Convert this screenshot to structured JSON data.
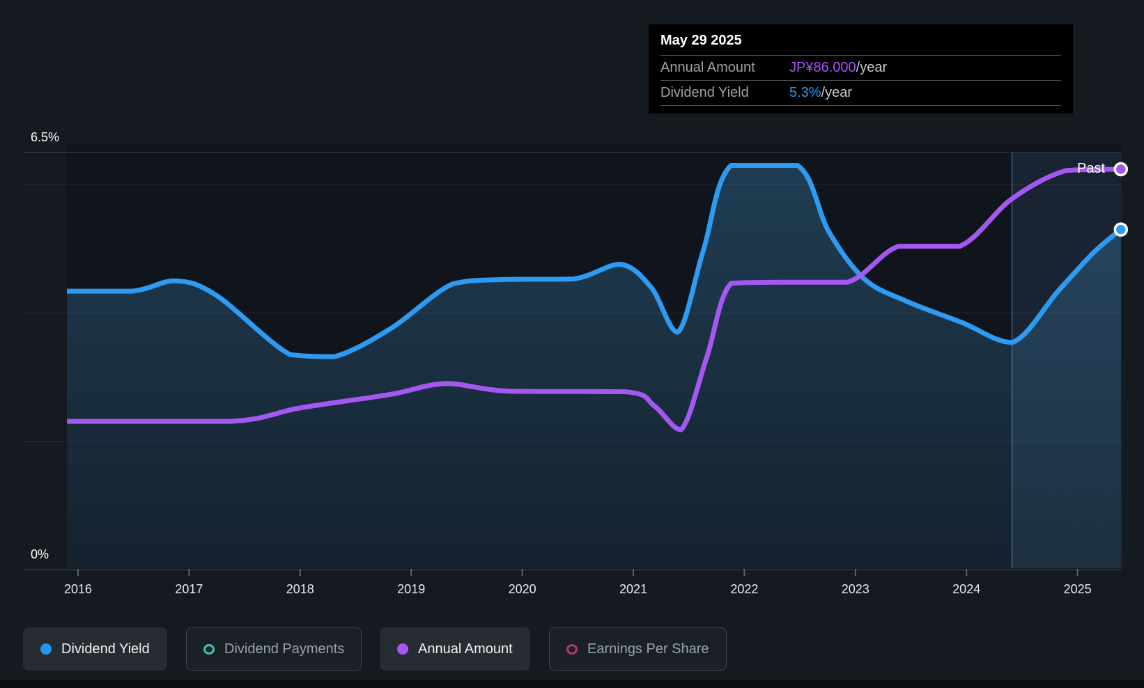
{
  "page": {
    "background": "#151a21",
    "plot_background": "#10141b",
    "bottom_strip_color": "#0b0e13"
  },
  "tooltip": {
    "date": "May 29 2025",
    "rows": [
      {
        "label": "Annual Amount",
        "value": "JP¥86.000",
        "suffix": "/year",
        "color": "#a751f5"
      },
      {
        "label": "Dividend Yield",
        "value": "5.3%",
        "suffix": "/year",
        "color": "#2d9bf0"
      }
    ]
  },
  "chart_data": {
    "type": "area",
    "title": "Dividend yield and annual dividend amount history",
    "x_axis": {
      "ticks": [
        2016,
        2017,
        2018,
        2019,
        2020,
        2021,
        2022,
        2023,
        2024,
        2025
      ],
      "range": [
        2015.9,
        2025.42
      ],
      "grid": false
    },
    "y_axis": {
      "range": [
        0,
        6.5
      ],
      "unit": "%",
      "labels": [
        {
          "text": "6.5%",
          "pct": 6.5
        },
        {
          "text": "0%",
          "pct": 0
        }
      ],
      "gridlines_pct": [
        6.5,
        6,
        4,
        2,
        0
      ]
    },
    "past_marker": {
      "label": "Past",
      "divider_year": 2024.41
    },
    "legend_position": "bottom",
    "series": [
      {
        "name": "Dividend Yield",
        "color": "#2e9bf3",
        "unit": "%",
        "visible": true,
        "end_value": "5.3%/year",
        "points": [
          {
            "year": 2015.9,
            "yield_pct": 4.34
          },
          {
            "year": 2016.49,
            "yield_pct": 4.34
          },
          {
            "year": 2016.87,
            "yield_pct": 4.5
          },
          {
            "year": 2017.24,
            "yield_pct": 4.28
          },
          {
            "year": 2017.91,
            "yield_pct": 3.35
          },
          {
            "year": 2018.31,
            "yield_pct": 3.32
          },
          {
            "year": 2018.81,
            "yield_pct": 3.75
          },
          {
            "year": 2019.37,
            "yield_pct": 4.45
          },
          {
            "year": 2019.81,
            "yield_pct": 4.52
          },
          {
            "year": 2020.46,
            "yield_pct": 4.53
          },
          {
            "year": 2020.88,
            "yield_pct": 4.76
          },
          {
            "year": 2021.16,
            "yield_pct": 4.4
          },
          {
            "year": 2021.4,
            "yield_pct": 3.7
          },
          {
            "year": 2021.63,
            "yield_pct": 4.97
          },
          {
            "year": 2021.88,
            "yield_pct": 6.3
          },
          {
            "year": 2022.48,
            "yield_pct": 6.3
          },
          {
            "year": 2022.76,
            "yield_pct": 5.27
          },
          {
            "year": 2023.08,
            "yield_pct": 4.53
          },
          {
            "year": 2023.45,
            "yield_pct": 4.19
          },
          {
            "year": 2023.96,
            "yield_pct": 3.85
          },
          {
            "year": 2024.41,
            "yield_pct": 3.54
          },
          {
            "year": 2024.83,
            "yield_pct": 4.35
          },
          {
            "year": 2025.15,
            "yield_pct": 4.95
          },
          {
            "year": 2025.39,
            "yield_pct": 5.3
          }
        ]
      },
      {
        "name": "Annual Amount",
        "color": "#a458f2",
        "unit": "JP¥/year (plotted on the yield % axis)",
        "visible": true,
        "end_value": "JP¥86.000/year",
        "points": [
          {
            "year": 2015.9,
            "plotted_pct": 2.31,
            "amount_jpy_est": 32
          },
          {
            "year": 2017.37,
            "plotted_pct": 2.31,
            "amount_jpy_est": 32
          },
          {
            "year": 2018.0,
            "plotted_pct": 2.52,
            "amount_jpy_est": 35
          },
          {
            "year": 2018.81,
            "plotted_pct": 2.73,
            "amount_jpy_est": 38
          },
          {
            "year": 2019.31,
            "plotted_pct": 2.9,
            "amount_jpy_est": 40
          },
          {
            "year": 2019.88,
            "plotted_pct": 2.78,
            "amount_jpy_est": 38
          },
          {
            "year": 2020.94,
            "plotted_pct": 2.77,
            "amount_jpy_est": 38
          },
          {
            "year": 2021.19,
            "plotted_pct": 2.55,
            "amount_jpy_est": 35
          },
          {
            "year": 2021.43,
            "plotted_pct": 2.18,
            "amount_jpy_est": 30
          },
          {
            "year": 2021.66,
            "plotted_pct": 3.3,
            "amount_jpy_est": 45
          },
          {
            "year": 2021.88,
            "plotted_pct": 4.46,
            "amount_jpy_est": 61
          },
          {
            "year": 2022.32,
            "plotted_pct": 4.48,
            "amount_jpy_est": 62
          },
          {
            "year": 2022.93,
            "plotted_pct": 4.48,
            "amount_jpy_est": 62
          },
          {
            "year": 2023.39,
            "plotted_pct": 5.04,
            "amount_jpy_est": 69
          },
          {
            "year": 2023.94,
            "plotted_pct": 5.04,
            "amount_jpy_est": 69
          },
          {
            "year": 2024.41,
            "plotted_pct": 5.78,
            "amount_jpy_est": 80
          },
          {
            "year": 2024.9,
            "plotted_pct": 6.22,
            "amount_jpy_est": 86
          },
          {
            "year": 2025.39,
            "plotted_pct": 6.24,
            "amount_jpy_est": 86
          }
        ]
      },
      {
        "name": "Dividend Payments",
        "color": "#40c4b4",
        "visible": false,
        "points": []
      },
      {
        "name": "Earnings Per Share",
        "color": "#b03a6e",
        "visible": false,
        "points": []
      }
    ]
  },
  "legend": [
    {
      "label": "Dividend Yield",
      "color": "#2196f3",
      "marker": "filled",
      "active": true
    },
    {
      "label": "Dividend Payments",
      "color": "#40c4b4",
      "marker": "ring",
      "active": false
    },
    {
      "label": "Annual Amount",
      "color": "#a854f6",
      "marker": "filled",
      "active": true
    },
    {
      "label": "Earnings Per Share",
      "color": "#b03a6e",
      "marker": "ring",
      "active": false
    }
  ]
}
